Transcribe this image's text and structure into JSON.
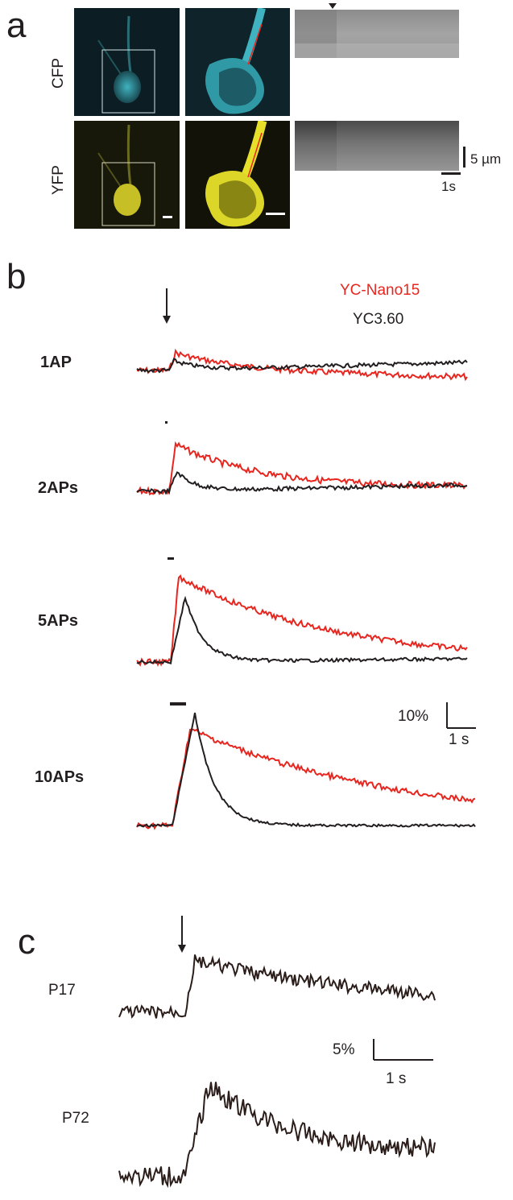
{
  "panel_a": {
    "letter": "a",
    "rows": [
      "CFP",
      "YFP"
    ],
    "scale_space": "5 µm",
    "scale_time": "1s"
  },
  "panel_b": {
    "letter": "b",
    "legend": [
      {
        "name": "YC-Nano15",
        "color": "#e8261f"
      },
      {
        "name": "YC3.60",
        "color": "#231f20"
      }
    ],
    "traces": [
      "1AP",
      "2APs",
      "5APs",
      "10APs"
    ],
    "scale_y": "10%",
    "scale_x": "1 s"
  },
  "panel_c": {
    "letter": "c",
    "traces": [
      "P17",
      "P72"
    ],
    "scale_y": "5%",
    "scale_x": "1 s"
  },
  "colors": {
    "cyan": "#3fb3c0",
    "yellow": "#e6e02a",
    "red": "#e8261f",
    "black": "#231f20",
    "trace_c": "#2b1d1a"
  }
}
